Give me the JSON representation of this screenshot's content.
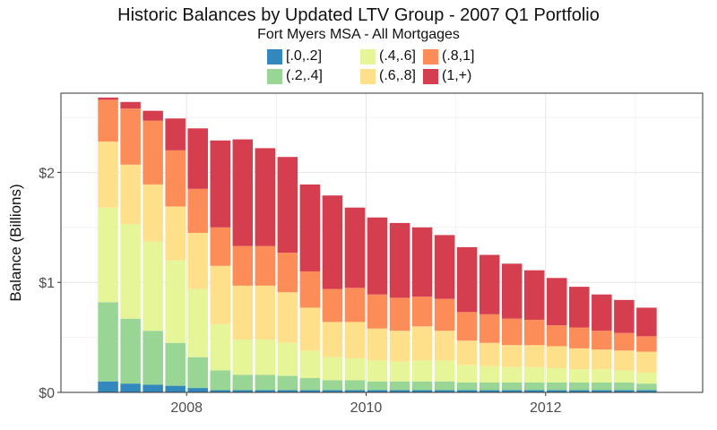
{
  "chart_data": {
    "type": "bar",
    "stacked": true,
    "title": "Historic Balances by Updated LTV Group - 2007 Q1 Portfolio",
    "subtitle": "Fort Myers MSA - All Mortgages",
    "xlabel": "",
    "ylabel": "Balance (Billions)",
    "ylim": [
      0,
      2.72
    ],
    "xlim": [
      2006.6,
      2013.75
    ],
    "y_ticks": [
      {
        "value": 0,
        "label": "$0"
      },
      {
        "value": 1,
        "label": "$1"
      },
      {
        "value": 2,
        "label": "$2"
      }
    ],
    "x_ticks": [
      {
        "value": 2008,
        "label": "2008"
      },
      {
        "value": 2010,
        "label": "2010"
      },
      {
        "value": 2012,
        "label": "2012"
      }
    ],
    "grid": true,
    "legend_position": "top",
    "x": [
      2007.125,
      2007.375,
      2007.625,
      2007.875,
      2008.125,
      2008.375,
      2008.625,
      2008.875,
      2009.125,
      2009.375,
      2009.625,
      2009.875,
      2010.125,
      2010.375,
      2010.625,
      2010.875,
      2011.125,
      2011.375,
      2011.625,
      2011.875,
      2012.125,
      2012.375,
      2012.625,
      2012.875,
      2013.125
    ],
    "series": [
      {
        "name": "[.0,.2]",
        "color": "#3288bd",
        "values": [
          0.1,
          0.08,
          0.07,
          0.06,
          0.04,
          0.02,
          0.02,
          0.02,
          0.02,
          0.02,
          0.02,
          0.02,
          0.02,
          0.02,
          0.02,
          0.02,
          0.02,
          0.02,
          0.02,
          0.02,
          0.02,
          0.02,
          0.02,
          0.02,
          0.02
        ]
      },
      {
        "name": "(.2,.4]",
        "color": "#99d594",
        "values": [
          0.72,
          0.59,
          0.49,
          0.39,
          0.28,
          0.18,
          0.14,
          0.14,
          0.13,
          0.11,
          0.09,
          0.09,
          0.08,
          0.08,
          0.08,
          0.08,
          0.07,
          0.07,
          0.07,
          0.07,
          0.07,
          0.07,
          0.07,
          0.07,
          0.06
        ]
      },
      {
        "name": "(.4,.6]",
        "color": "#e6f598",
        "values": [
          0.86,
          0.86,
          0.81,
          0.75,
          0.62,
          0.42,
          0.32,
          0.32,
          0.3,
          0.25,
          0.21,
          0.2,
          0.19,
          0.18,
          0.19,
          0.19,
          0.16,
          0.15,
          0.14,
          0.14,
          0.13,
          0.12,
          0.12,
          0.11,
          0.1
        ]
      },
      {
        "name": "(.6,.8]",
        "color": "#fee08b",
        "values": [
          0.6,
          0.54,
          0.52,
          0.49,
          0.51,
          0.53,
          0.49,
          0.49,
          0.46,
          0.39,
          0.32,
          0.33,
          0.29,
          0.28,
          0.31,
          0.27,
          0.22,
          0.21,
          0.2,
          0.2,
          0.2,
          0.19,
          0.18,
          0.18,
          0.19
        ]
      },
      {
        "name": "(.8,1]",
        "color": "#fc8d59",
        "values": [
          0.38,
          0.51,
          0.58,
          0.51,
          0.4,
          0.35,
          0.36,
          0.36,
          0.36,
          0.33,
          0.3,
          0.31,
          0.31,
          0.3,
          0.27,
          0.29,
          0.26,
          0.26,
          0.24,
          0.23,
          0.19,
          0.19,
          0.17,
          0.16,
          0.14
        ]
      },
      {
        "name": "(1,+)",
        "color": "#d53e4f",
        "values": [
          0.02,
          0.06,
          0.09,
          0.29,
          0.55,
          0.79,
          0.97,
          0.89,
          0.87,
          0.79,
          0.85,
          0.73,
          0.7,
          0.68,
          0.63,
          0.58,
          0.59,
          0.54,
          0.5,
          0.45,
          0.43,
          0.37,
          0.33,
          0.3,
          0.26
        ]
      }
    ]
  }
}
